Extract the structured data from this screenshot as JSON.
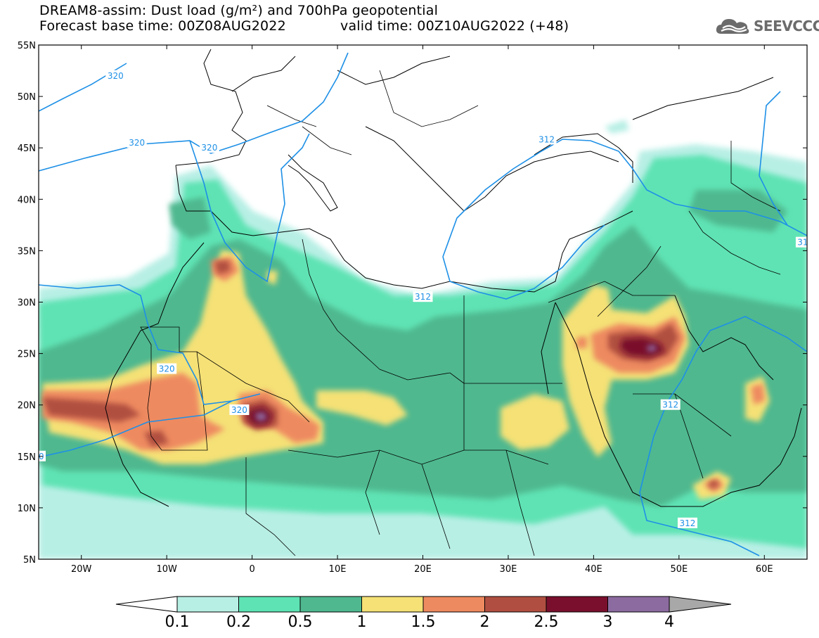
{
  "header": {
    "title_line1": "DREAM8-assim: Dust load (g/m²) and 700hPa geopotential",
    "base_time": "Forecast base time: 00Z08AUG2022",
    "valid_time": "valid time: 00Z10AUG2022 (+48)"
  },
  "logo": {
    "text": "SEEVCCC",
    "icon": "cloud-icon"
  },
  "map": {
    "lon_range": [
      -25,
      65
    ],
    "lat_range": [
      5,
      55
    ],
    "lat_ticks": [
      {
        "value": 55,
        "label": "55N"
      },
      {
        "value": 50,
        "label": "50N"
      },
      {
        "value": 45,
        "label": "45N"
      },
      {
        "value": 40,
        "label": "40N"
      },
      {
        "value": 35,
        "label": "35N"
      },
      {
        "value": 30,
        "label": "30N"
      },
      {
        "value": 25,
        "label": "25N"
      },
      {
        "value": 20,
        "label": "20N"
      },
      {
        "value": 15,
        "label": "15N"
      },
      {
        "value": 10,
        "label": "10N"
      },
      {
        "value": 5,
        "label": "5N"
      }
    ],
    "lon_ticks": [
      {
        "value": -20,
        "label": "20W"
      },
      {
        "value": -10,
        "label": "10W"
      },
      {
        "value": 0,
        "label": "0"
      },
      {
        "value": 10,
        "label": "10E"
      },
      {
        "value": 20,
        "label": "20E"
      },
      {
        "value": 30,
        "label": "30E"
      },
      {
        "value": 40,
        "label": "40E"
      },
      {
        "value": 50,
        "label": "50E"
      },
      {
        "value": 60,
        "label": "60E"
      }
    ],
    "contour_labels": [
      {
        "text": "320",
        "lon": -16,
        "lat": 52
      },
      {
        "text": "320",
        "lon": -13.5,
        "lat": 45.5
      },
      {
        "text": "320",
        "lon": -5,
        "lat": 45
      },
      {
        "text": "320",
        "lon": -10,
        "lat": 23.5
      },
      {
        "text": "320",
        "lon": -1.5,
        "lat": 19.5
      },
      {
        "text": "20",
        "lon": -25,
        "lat": 15
      },
      {
        "text": "312",
        "lon": 34.5,
        "lat": 45.8
      },
      {
        "text": "312",
        "lon": 20,
        "lat": 30.5
      },
      {
        "text": "312",
        "lon": 49,
        "lat": 20
      },
      {
        "text": "312",
        "lon": 51,
        "lat": 8.5
      },
      {
        "text": "31",
        "lon": 64.5,
        "lat": 35.8
      }
    ]
  },
  "colorbar": {
    "levels": [
      "0.1",
      "0.2",
      "0.5",
      "1",
      "1.5",
      "2",
      "2.5",
      "3",
      "4"
    ],
    "colors": [
      "#ffffff",
      "#b8efe5",
      "#5ee3b4",
      "#4fb88f",
      "#f5e176",
      "#ee8a60",
      "#b04f41",
      "#790f2c",
      "#8c6ba0",
      "#a8a8a8"
    ]
  }
}
